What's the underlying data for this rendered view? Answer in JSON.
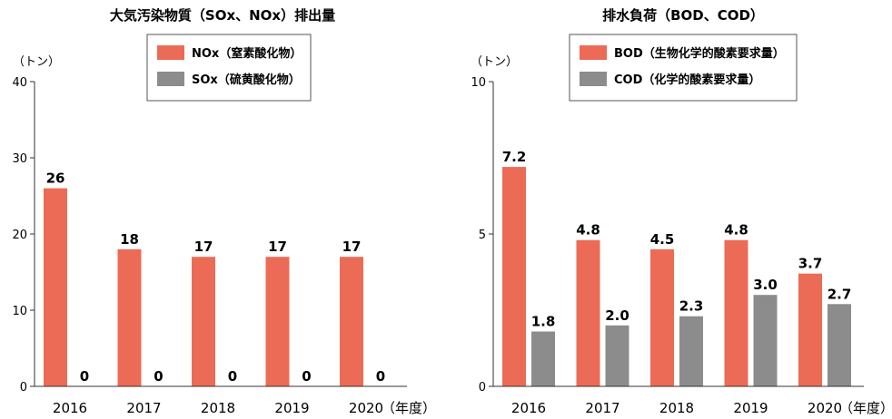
{
  "colors": {
    "primary": "#EC6B56",
    "secondary": "#8C8C8C",
    "axis": "#333333",
    "legend_border": "#555555"
  },
  "chart_data": [
    {
      "type": "bar",
      "title": "大気汚染物質（SOx、NOx）排出量",
      "ylabel": "（トン）",
      "x_unit": "（年度）",
      "categories": [
        "2016",
        "2017",
        "2018",
        "2019",
        "2020"
      ],
      "yticks": [
        "0",
        "10",
        "20",
        "30",
        "40"
      ],
      "ylim": [
        0,
        40
      ],
      "legend_position": "top-center",
      "series": [
        {
          "name": "NOx（窒素酸化物）",
          "color": "#EC6B56",
          "values": [
            26,
            18,
            17,
            17,
            17
          ],
          "labels": [
            "26",
            "18",
            "17",
            "17",
            "17"
          ]
        },
        {
          "name": "SOx（硫黄酸化物）",
          "color": "#8C8C8C",
          "values": [
            0,
            0,
            0,
            0,
            0
          ],
          "labels": [
            "0",
            "0",
            "0",
            "0",
            "0"
          ]
        }
      ]
    },
    {
      "type": "bar",
      "title": "排水負荷（BOD、COD）",
      "ylabel": "（トン）",
      "x_unit": "（年度）",
      "categories": [
        "2016",
        "2017",
        "2018",
        "2019",
        "2020"
      ],
      "yticks": [
        "0",
        "5",
        "10"
      ],
      "ylim": [
        0,
        10
      ],
      "legend_position": "top-center",
      "series": [
        {
          "name": "BOD（生物化学的酸素要求量）",
          "color": "#EC6B56",
          "values": [
            7.2,
            4.8,
            4.5,
            4.8,
            3.7
          ],
          "labels": [
            "7.2",
            "4.8",
            "4.5",
            "4.8",
            "3.7"
          ]
        },
        {
          "name": "COD（化学的酸素要求量）",
          "color": "#8C8C8C",
          "values": [
            1.8,
            2.0,
            2.3,
            3.0,
            2.7
          ],
          "labels": [
            "1.8",
            "2.0",
            "2.3",
            "3.0",
            "2.7"
          ]
        }
      ]
    }
  ]
}
